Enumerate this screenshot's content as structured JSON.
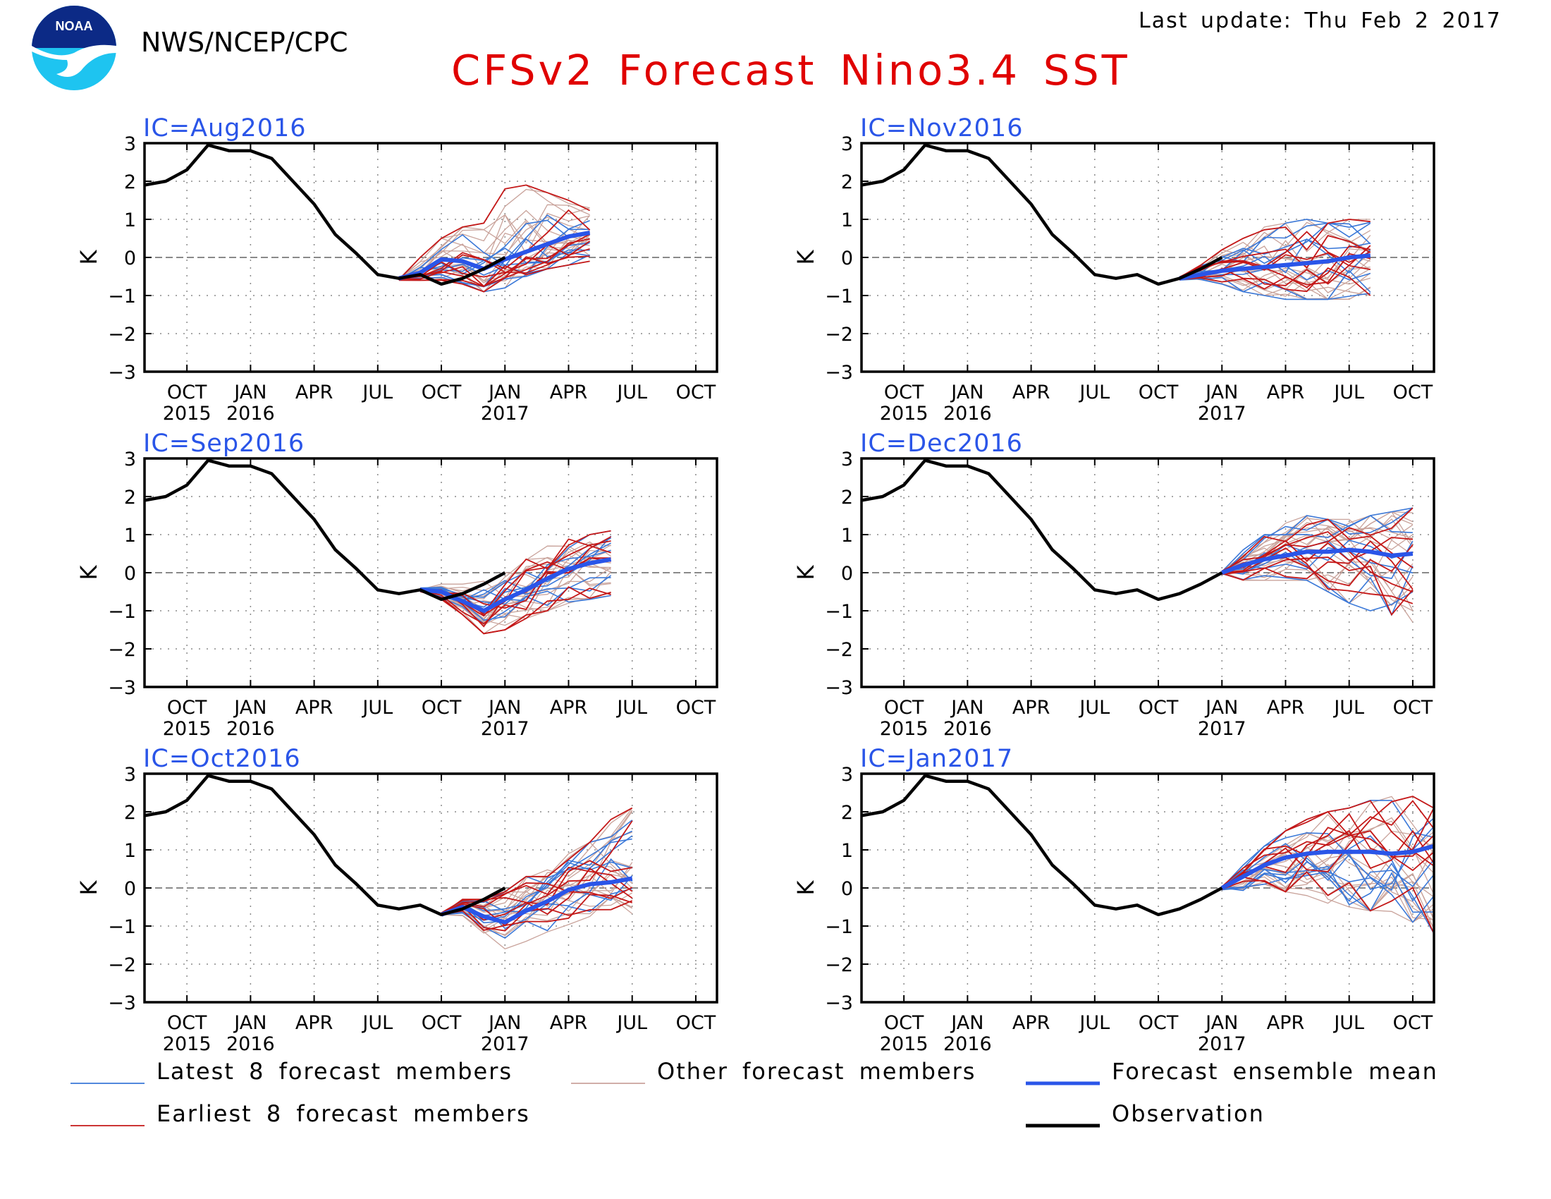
{
  "header": {
    "logo_text": "NOAA",
    "org": "NWS/NCEP/CPC",
    "title": "CFSv2 Forecast Nino3.4 SST",
    "last_update": "Last update: Thu Feb 2 2017"
  },
  "colors": {
    "latest": "#3a78d8",
    "earliest": "#c41818",
    "other": "#c9a39b",
    "mean": "#2a55e8",
    "observation": "#000000",
    "title": "#e00000",
    "panel_title": "#2a55e8"
  },
  "legend": [
    {
      "label": "Latest 8 forecast members",
      "key": "latest"
    },
    {
      "label": "Other forecast members",
      "key": "other"
    },
    {
      "label": "Forecast ensemble mean",
      "key": "mean"
    },
    {
      "label": "Earliest 8 forecast members",
      "key": "earliest"
    },
    {
      "label": "Observation",
      "key": "observation"
    }
  ],
  "chart_data": {
    "type": "line",
    "ylabel": "K",
    "ylim": [
      -3,
      3
    ],
    "yticks": [
      3,
      2,
      1,
      0,
      -1,
      -2,
      -3
    ],
    "ytick_labels": [
      "3",
      "2",
      "1",
      "0",
      "−1",
      "−2",
      "−3"
    ],
    "xlim": [
      "2015-08",
      "2017-11"
    ],
    "xticks": [
      {
        "month": "2015-10",
        "label": "OCT",
        "year": "2015"
      },
      {
        "month": "2016-01",
        "label": "JAN",
        "year": "2016"
      },
      {
        "month": "2016-04",
        "label": "APR",
        "year": ""
      },
      {
        "month": "2016-07",
        "label": "JUL",
        "year": ""
      },
      {
        "month": "2016-10",
        "label": "OCT",
        "year": ""
      },
      {
        "month": "2017-01",
        "label": "JAN",
        "year": "2017"
      },
      {
        "month": "2017-04",
        "label": "APR",
        "year": ""
      },
      {
        "month": "2017-07",
        "label": "JUL",
        "year": ""
      },
      {
        "month": "2017-10",
        "label": "OCT",
        "year": ""
      }
    ],
    "grid": "dotted",
    "zero_line": "dashed",
    "observation": {
      "x": [
        "2015-08",
        "2015-09",
        "2015-10",
        "2015-11",
        "2015-12",
        "2016-01",
        "2016-02",
        "2016-03",
        "2016-04",
        "2016-05",
        "2016-06",
        "2016-07",
        "2016-08",
        "2016-09",
        "2016-10",
        "2016-11",
        "2016-12",
        "2017-01"
      ],
      "y": [
        1.9,
        2.0,
        2.3,
        2.95,
        2.8,
        2.8,
        2.6,
        2.0,
        1.4,
        0.6,
        0.1,
        -0.45,
        -0.55,
        -0.45,
        -0.7,
        -0.55,
        -0.3,
        0.0
      ]
    },
    "panels": [
      {
        "ic": "IC=Aug2016",
        "observation_through": "2017-01",
        "mean": {
          "x": [
            "2016-08",
            "2016-09",
            "2016-10",
            "2016-11",
            "2016-12",
            "2017-01",
            "2017-02",
            "2017-03",
            "2017-04",
            "2017-05"
          ],
          "y": [
            -0.55,
            -0.4,
            -0.05,
            -0.1,
            -0.3,
            -0.05,
            0.15,
            0.35,
            0.55,
            0.65
          ]
        },
        "spread_lo": [
          -0.6,
          -0.6,
          -0.6,
          -0.7,
          -0.9,
          -0.8,
          -0.5,
          -0.3,
          -0.2,
          -0.1
        ],
        "spread_hi": [
          -0.4,
          0.0,
          0.5,
          0.8,
          0.9,
          1.8,
          1.9,
          1.7,
          1.5,
          1.3
        ]
      },
      {
        "ic": "IC=Sep2016",
        "observation_through": "2017-01",
        "mean": {
          "x": [
            "2016-09",
            "2016-10",
            "2016-11",
            "2016-12",
            "2017-01",
            "2017-02",
            "2017-03",
            "2017-04",
            "2017-05",
            "2017-06"
          ],
          "y": [
            -0.45,
            -0.5,
            -0.75,
            -1.0,
            -0.7,
            -0.45,
            -0.15,
            0.1,
            0.25,
            0.35
          ]
        },
        "spread_lo": [
          -0.5,
          -0.7,
          -1.1,
          -1.6,
          -1.5,
          -1.2,
          -1.0,
          -0.8,
          -0.7,
          -0.6
        ],
        "spread_hi": [
          -0.4,
          -0.3,
          -0.3,
          -0.2,
          0.0,
          0.5,
          0.7,
          0.9,
          1.0,
          1.1
        ]
      },
      {
        "ic": "IC=Oct2016",
        "observation_through": "2017-01",
        "mean": {
          "x": [
            "2016-10",
            "2016-11",
            "2016-12",
            "2017-01",
            "2017-02",
            "2017-03",
            "2017-04",
            "2017-05",
            "2017-06",
            "2017-07"
          ],
          "y": [
            -0.7,
            -0.5,
            -0.75,
            -0.9,
            -0.6,
            -0.35,
            -0.05,
            0.1,
            0.15,
            0.25
          ]
        },
        "spread_lo": [
          -0.7,
          -0.8,
          -1.3,
          -1.6,
          -1.4,
          -1.2,
          -1.1,
          -0.8,
          -0.6,
          -0.9
        ],
        "spread_hi": [
          -0.6,
          -0.3,
          -0.3,
          -0.1,
          0.3,
          0.5,
          0.9,
          1.2,
          1.8,
          2.1
        ]
      },
      {
        "ic": "IC=Nov2016",
        "observation_through": "2017-01",
        "mean": {
          "x": [
            "2016-11",
            "2016-12",
            "2017-01",
            "2017-02",
            "2017-03",
            "2017-04",
            "2017-05",
            "2017-06",
            "2017-07",
            "2017-08"
          ],
          "y": [
            -0.55,
            -0.45,
            -0.35,
            -0.3,
            -0.25,
            -0.2,
            -0.15,
            -0.1,
            0.0,
            0.05
          ]
        },
        "spread_lo": [
          -0.6,
          -0.6,
          -0.7,
          -0.9,
          -1.0,
          -1.1,
          -1.1,
          -1.1,
          -1.1,
          -1.0
        ],
        "spread_hi": [
          -0.5,
          -0.2,
          0.2,
          0.5,
          0.8,
          0.9,
          1.0,
          0.9,
          1.0,
          1.0
        ]
      },
      {
        "ic": "IC=Dec2016",
        "observation_through": "2017-01",
        "mean": {
          "x": [
            "2017-01",
            "2017-02",
            "2017-03",
            "2017-04",
            "2017-05",
            "2017-06",
            "2017-07",
            "2017-08",
            "2017-09",
            "2017-10"
          ],
          "y": [
            0.0,
            0.2,
            0.35,
            0.45,
            0.55,
            0.55,
            0.6,
            0.55,
            0.45,
            0.5
          ]
        },
        "spread_lo": [
          -0.1,
          -0.2,
          -0.2,
          -0.2,
          -0.2,
          -0.5,
          -0.8,
          -1.0,
          -1.2,
          -1.3
        ],
        "spread_hi": [
          0.1,
          0.6,
          1.0,
          1.3,
          1.5,
          1.4,
          1.4,
          1.5,
          1.6,
          1.7
        ]
      },
      {
        "ic": "IC=Jan2017",
        "observation_through": "2017-01",
        "mean": {
          "x": [
            "2017-01",
            "2017-02",
            "2017-03",
            "2017-04",
            "2017-05",
            "2017-06",
            "2017-07",
            "2017-08",
            "2017-09",
            "2017-10",
            "2017-11"
          ],
          "y": [
            0.0,
            0.3,
            0.6,
            0.8,
            0.9,
            0.95,
            0.95,
            0.95,
            0.9,
            0.95,
            1.1
          ]
        },
        "spread_lo": [
          -0.1,
          -0.1,
          0.1,
          -0.1,
          -0.2,
          -0.4,
          -0.5,
          -0.6,
          -0.7,
          -0.9,
          -1.2
        ],
        "spread_hi": [
          0.1,
          0.6,
          1.1,
          1.5,
          1.8,
          2.0,
          2.1,
          2.3,
          2.4,
          2.6,
          2.9
        ]
      }
    ]
  }
}
